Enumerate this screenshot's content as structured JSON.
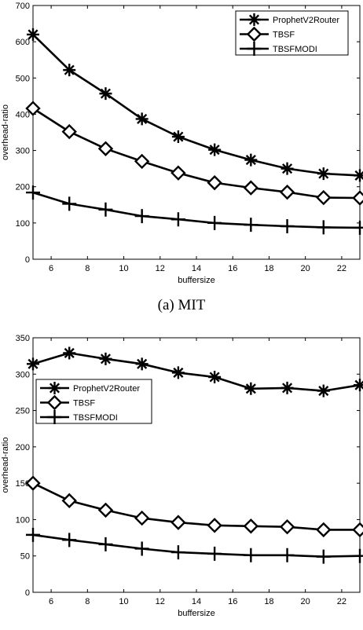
{
  "chart_data": [
    {
      "type": "line",
      "caption": "(a) MIT",
      "xlabel": "buffersize",
      "ylabel": "overhead-ratio",
      "xlim": [
        5,
        23
      ],
      "ylim": [
        0,
        700
      ],
      "xticks": [
        6,
        8,
        10,
        12,
        14,
        16,
        18,
        20,
        22
      ],
      "yticks": [
        0,
        100,
        200,
        300,
        400,
        500,
        600,
        700
      ],
      "legend_position": "top-right",
      "x": [
        5,
        7,
        9,
        11,
        13,
        15,
        17,
        19,
        21,
        23
      ],
      "series": [
        {
          "name": "ProphetV2Router",
          "marker": "star",
          "values": [
            620,
            522,
            457,
            387,
            338,
            302,
            274,
            250,
            236,
            231
          ]
        },
        {
          "name": "TBSF",
          "marker": "diamond",
          "values": [
            416,
            352,
            305,
            270,
            238,
            211,
            197,
            185,
            170,
            169
          ]
        },
        {
          "name": "TBSFMODI",
          "marker": "plus",
          "values": [
            184,
            153,
            137,
            119,
            110,
            100,
            95,
            91,
            88,
            87
          ]
        }
      ]
    },
    {
      "type": "line",
      "caption": "",
      "xlabel": "buffersize",
      "ylabel": "overhead-ratio",
      "xlim": [
        5,
        23
      ],
      "ylim": [
        0,
        350
      ],
      "xticks": [
        6,
        8,
        10,
        12,
        14,
        16,
        18,
        20,
        22
      ],
      "yticks": [
        0,
        50,
        100,
        150,
        200,
        250,
        300,
        350
      ],
      "legend_position": "top-left",
      "x": [
        5,
        7,
        9,
        11,
        13,
        15,
        17,
        19,
        21,
        23
      ],
      "series": [
        {
          "name": "ProphetV2Router",
          "marker": "star",
          "values": [
            314,
            329,
            321,
            314,
            302,
            296,
            280,
            281,
            277,
            285
          ]
        },
        {
          "name": "TBSF",
          "marker": "diamond",
          "values": [
            150,
            126,
            113,
            102,
            96,
            92,
            91,
            90,
            86,
            86
          ]
        },
        {
          "name": "TBSFMODI",
          "marker": "plus",
          "values": [
            79,
            72,
            66,
            60,
            55,
            53,
            51,
            51,
            49,
            50
          ]
        }
      ]
    }
  ]
}
